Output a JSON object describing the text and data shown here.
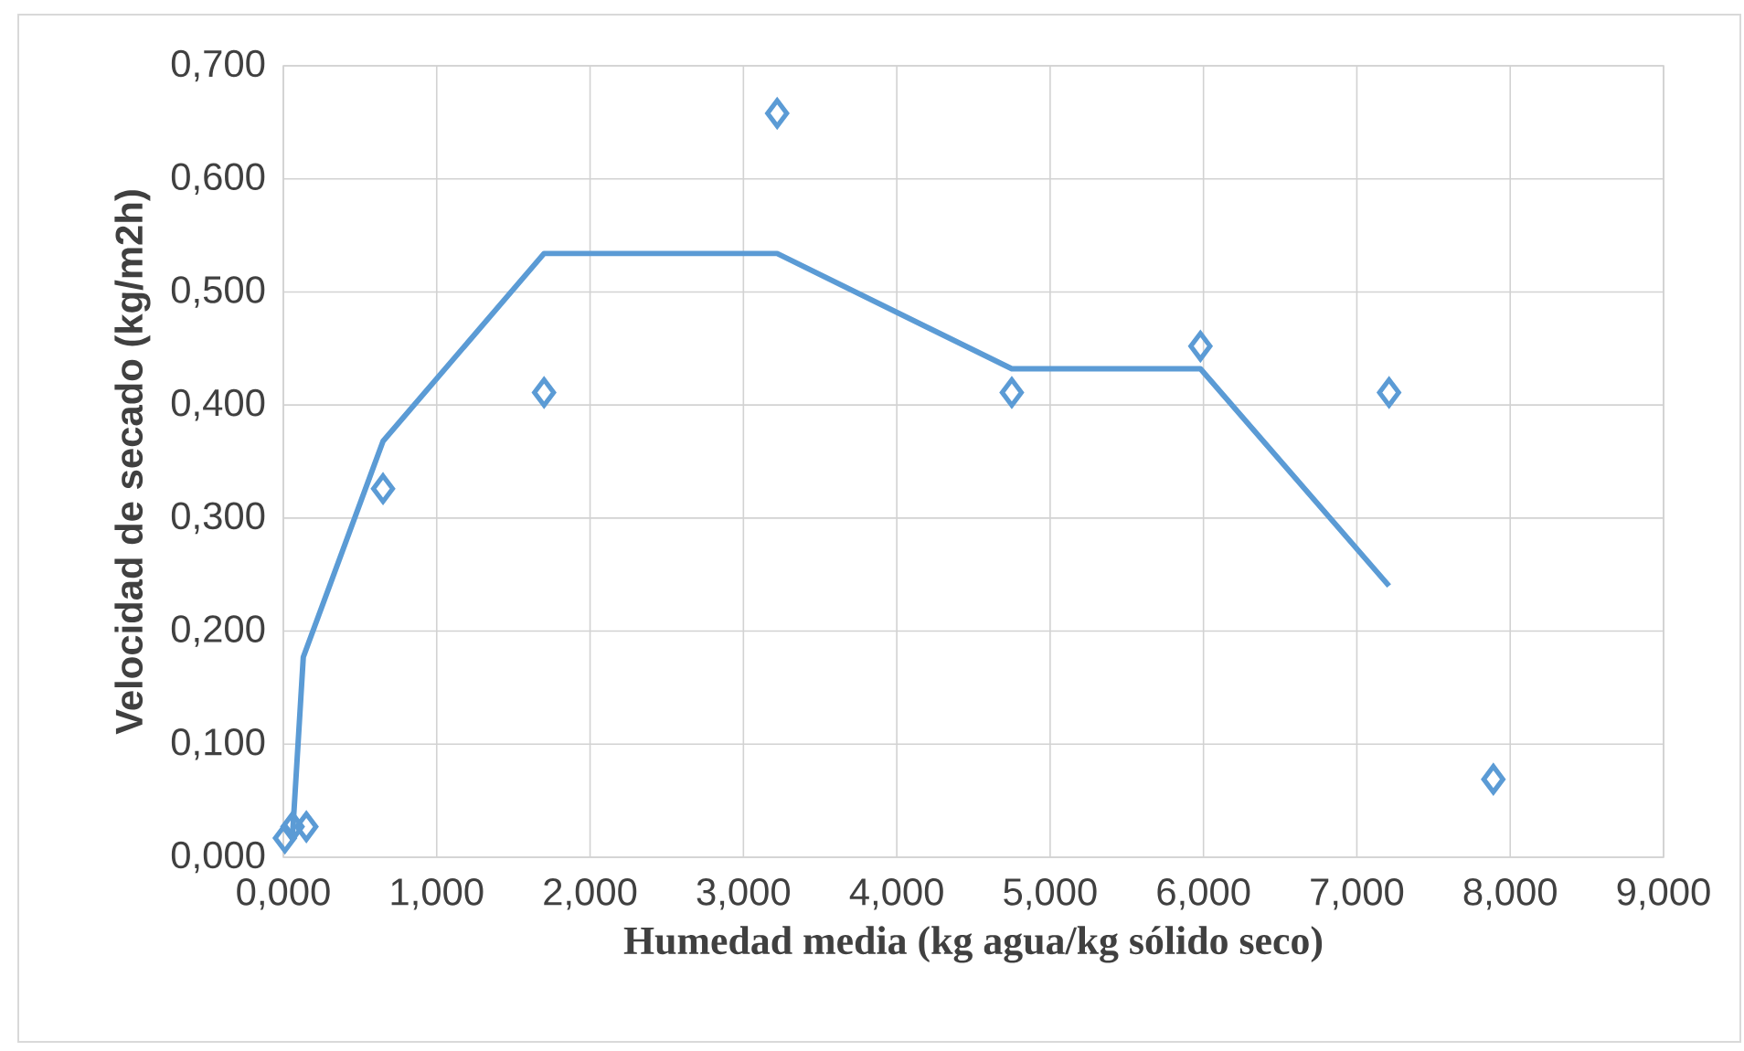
{
  "chart_data": {
    "type": "scatter",
    "xlabel": "Humedad media (kg agua/kg sólido seco)",
    "ylabel": "Velocidad de secado (kg/m2h)",
    "xlim": [
      0,
      9
    ],
    "ylim": [
      0,
      0.7
    ],
    "xticks": [
      {
        "value": 0,
        "label": "0,000"
      },
      {
        "value": 1,
        "label": "1,000"
      },
      {
        "value": 2,
        "label": "2,000"
      },
      {
        "value": 3,
        "label": "3,000"
      },
      {
        "value": 4,
        "label": "4,000"
      },
      {
        "value": 5,
        "label": "5,000"
      },
      {
        "value": 6,
        "label": "6,000"
      },
      {
        "value": 7,
        "label": "7,000"
      },
      {
        "value": 8,
        "label": "8,000"
      },
      {
        "value": 9,
        "label": "9,000"
      }
    ],
    "yticks": [
      {
        "value": 0,
        "label": "0,000"
      },
      {
        "value": 0.1,
        "label": "0,100"
      },
      {
        "value": 0.2,
        "label": "0,200"
      },
      {
        "value": 0.3,
        "label": "0,300"
      },
      {
        "value": 0.4,
        "label": "0,400"
      },
      {
        "value": 0.5,
        "label": "0,500"
      },
      {
        "value": 0.6,
        "label": "0,600"
      },
      {
        "value": 0.7,
        "label": "0,700"
      }
    ],
    "grid": true,
    "legend": false,
    "series": [
      {
        "marker": "diamond",
        "color": "#5b9bd5",
        "x": [
          0.01,
          0.06,
          0.15,
          0.65,
          1.7,
          3.22,
          4.75,
          5.98,
          7.21,
          7.89
        ],
        "values": [
          0.017,
          0.027,
          0.027,
          0.326,
          0.411,
          0.658,
          0.411,
          0.452,
          0.411,
          0.069
        ]
      },
      {
        "type": "line",
        "marker": "none",
        "line_style": "solid",
        "color": "#5b9bd5",
        "x": [
          0.06,
          0.13,
          0.65,
          1.7,
          3.22,
          4.75,
          5.98,
          7.21
        ],
        "values": [
          0.02,
          0.177,
          0.368,
          0.534,
          0.534,
          0.432,
          0.432,
          0.24
        ]
      }
    ]
  }
}
